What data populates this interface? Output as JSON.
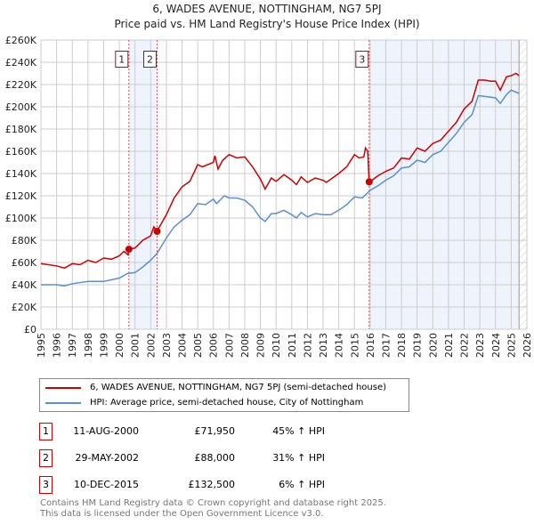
{
  "chart_data": {
    "type": "line",
    "title": "6, WADES AVENUE, NOTTINGHAM, NG7 5PJ",
    "subtitle": "Price paid vs. HM Land Registry's House Price Index (HPI)",
    "xlim": [
      1995,
      2026
    ],
    "ylim": [
      0,
      260000
    ],
    "x_ticks": [
      "1995",
      "1996",
      "1997",
      "1998",
      "1999",
      "2000",
      "2001",
      "2002",
      "2003",
      "2004",
      "2005",
      "2006",
      "2007",
      "2008",
      "2009",
      "2010",
      "2011",
      "2012",
      "2013",
      "2014",
      "2015",
      "2016",
      "2017",
      "2018",
      "2019",
      "2020",
      "2021",
      "2022",
      "2023",
      "2024",
      "2025",
      "2026"
    ],
    "y_ticks": [
      "£0",
      "£20K",
      "£40K",
      "£60K",
      "£80K",
      "£100K",
      "£120K",
      "£140K",
      "£160K",
      "£180K",
      "£200K",
      "£220K",
      "£240K",
      "£260K"
    ],
    "grid": true,
    "series": [
      {
        "name": "6, WADES AVENUE, NOTTINGHAM, NG7 5PJ (semi-detached house)",
        "color": "#cc0000",
        "x": [
          1995,
          1996,
          1996.5,
          1997,
          1997.5,
          1998,
          1998.5,
          1999,
          1999.5,
          2000,
          2000.3,
          2000.55,
          2000.62,
          2001,
          2001.5,
          2002,
          2002.2,
          2002.4,
          2003,
          2003.5,
          2004,
          2004.5,
          2005,
          2005.3,
          2006,
          2006.1,
          2006.3,
          2006.6,
          2007,
          2007.5,
          2008,
          2008.5,
          2009,
          2009.3,
          2009.7,
          2010,
          2010.5,
          2011,
          2011.3,
          2011.6,
          2012,
          2012.5,
          2013,
          2013.2,
          2014,
          2014.5,
          2015,
          2015.3,
          2015.6,
          2015.7,
          2015.85,
          2015.94,
          2016.5,
          2017,
          2017.5,
          2018,
          2018.5,
          2019,
          2019.5,
          2020,
          2020.5,
          2021,
          2021.5,
          2022,
          2022.5,
          2022.9,
          2023.3,
          2023.7,
          2024,
          2024.3,
          2024.7,
          2025,
          2025.3,
          2025.5
        ],
        "y": [
          59,
          57,
          55,
          59,
          58,
          62,
          60,
          64,
          63,
          66,
          70,
          67,
          72,
          73,
          80,
          84,
          92,
          88,
          103,
          118,
          128,
          133,
          148,
          146,
          150,
          156,
          144,
          152,
          157,
          154,
          155,
          146,
          135,
          126,
          136,
          133,
          139,
          134,
          130,
          137,
          132,
          136,
          134,
          132,
          140,
          146,
          157,
          154,
          155,
          163,
          160,
          132,
          138,
          142,
          145,
          154,
          153,
          163,
          160,
          167,
          170,
          178,
          186,
          198,
          205,
          224,
          224,
          223,
          223,
          215,
          227,
          228,
          230,
          228
        ]
      },
      {
        "name": "HPI: Average price, semi-detached house, City of Nottingham",
        "color": "#5b8fd0",
        "x": [
          1995,
          1996,
          1996.5,
          1997,
          1998,
          1999,
          2000,
          2000.5,
          2001,
          2001.5,
          2002,
          2002.4,
          2003,
          2003.5,
          2004,
          2004.5,
          2005,
          2005.5,
          2006,
          2006.2,
          2006.7,
          2007,
          2007.5,
          2008,
          2008.5,
          2009,
          2009.3,
          2009.7,
          2010,
          2010.5,
          2011,
          2011.3,
          2011.6,
          2012,
          2012.5,
          2013,
          2013.5,
          2014,
          2014.5,
          2015,
          2015.5,
          2016,
          2016.5,
          2017,
          2017.5,
          2018,
          2018.5,
          2019,
          2019.5,
          2020,
          2020.5,
          2021,
          2021.5,
          2022,
          2022.5,
          2022.9,
          2023.5,
          2024,
          2024.3,
          2024.7,
          2025,
          2025.5
        ],
        "y": [
          40,
          40,
          39,
          41,
          43,
          43,
          46,
          50,
          51,
          56,
          62,
          68,
          82,
          92,
          98,
          103,
          113,
          112,
          117,
          113,
          120,
          118,
          118,
          116,
          110,
          100,
          97,
          104,
          104,
          107,
          103,
          100,
          105,
          101,
          104,
          103,
          103,
          107,
          112,
          119,
          118,
          125,
          129,
          134,
          138,
          145,
          146,
          152,
          150,
          157,
          160,
          168,
          176,
          186,
          193,
          210,
          209,
          208,
          203,
          211,
          215,
          212
        ]
      }
    ],
    "y_unit": "thousands GBP",
    "sales": [
      {
        "label": "1",
        "x": 2000.61,
        "price": 71950,
        "date": "11-AUG-2000",
        "price_text": "£71,950",
        "hpi": "45% ↑ HPI"
      },
      {
        "label": "2",
        "x": 2002.41,
        "price": 88000,
        "date": "29-MAY-2002",
        "price_text": "£88,000",
        "hpi": "31% ↑ HPI"
      },
      {
        "label": "3",
        "x": 2015.94,
        "price": 132500,
        "date": "10-DEC-2015",
        "price_text": "£132,500",
        "hpi": "6% ↑ HPI"
      }
    ],
    "shaded_ranges": [
      [
        2000.61,
        2002.41
      ],
      [
        2015.94,
        2025.5
      ]
    ],
    "hatched_from": 2025.5,
    "legend_placement": "below"
  },
  "footer": {
    "line1": "Contains HM Land Registry data © Crown copyright and database right 2025.",
    "line2": "This data is licensed under the Open Government Licence v3.0."
  }
}
